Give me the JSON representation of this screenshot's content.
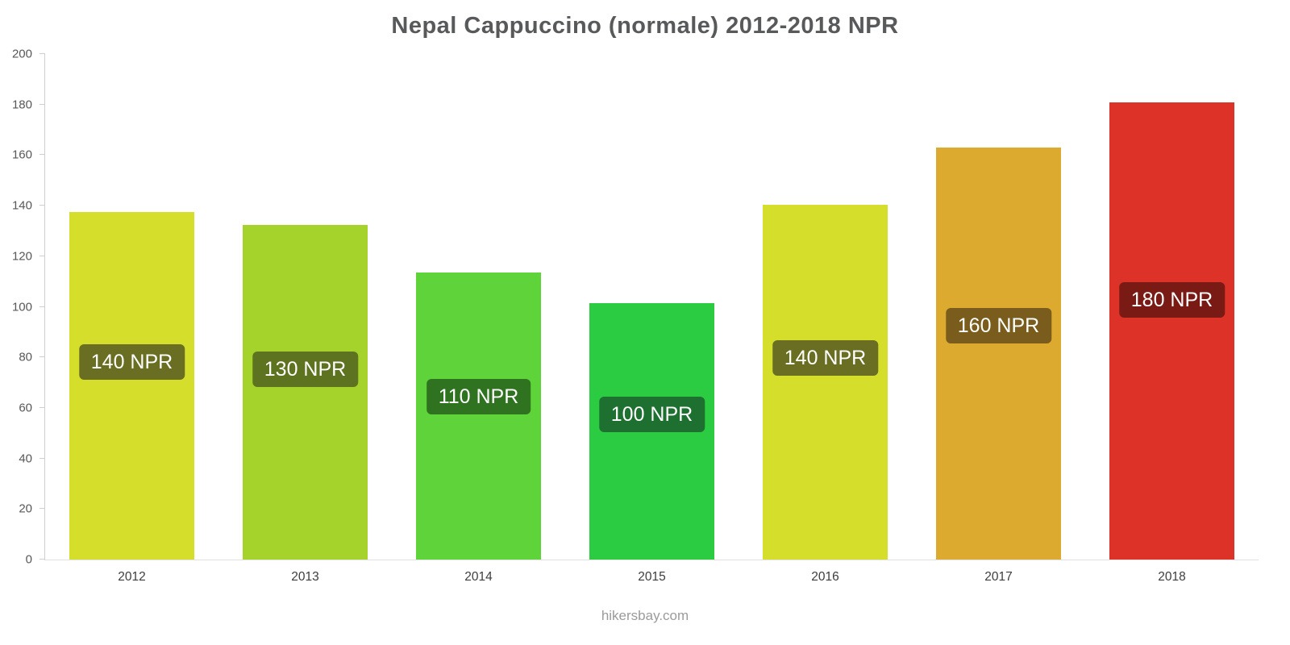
{
  "chart_data": {
    "type": "bar",
    "title": "Nepal Cappuccino (normale) 2012-2018 NPR",
    "categories": [
      "2012",
      "2013",
      "2014",
      "2015",
      "2016",
      "2017",
      "2018"
    ],
    "values": [
      137.5,
      132.5,
      113.5,
      101.5,
      140.5,
      163,
      181
    ],
    "bar_labels": [
      "140 NPR",
      "130 NPR",
      "110 NPR",
      "100 NPR",
      "140 NPR",
      "160 NPR",
      "180 NPR"
    ],
    "bar_colors": [
      "#d4de2b",
      "#a6d32b",
      "#5fd33a",
      "#2bcc41",
      "#d4de2b",
      "#dcaa2e",
      "#dd3228"
    ],
    "label_bg_colors": [
      "#6a6e22",
      "#5e731f",
      "#2f7321",
      "#1d7030",
      "#6a6e22",
      "#7a5d1d",
      "#7a1a14"
    ],
    "xlabel": "",
    "ylabel": "",
    "ylim": [
      0,
      200
    ],
    "ytick_step": 20,
    "grid": false,
    "legend": false
  },
  "footer": {
    "text": "hikersbay.com"
  },
  "colors": {
    "title": "#57595b",
    "axis": "#cfcfcf",
    "y_tick_label": "#58585a",
    "x_tick_label": "#3d3d3f",
    "bar_label_text": "#ffffff",
    "footer": "#9b9b9b",
    "background": "#ffffff"
  }
}
